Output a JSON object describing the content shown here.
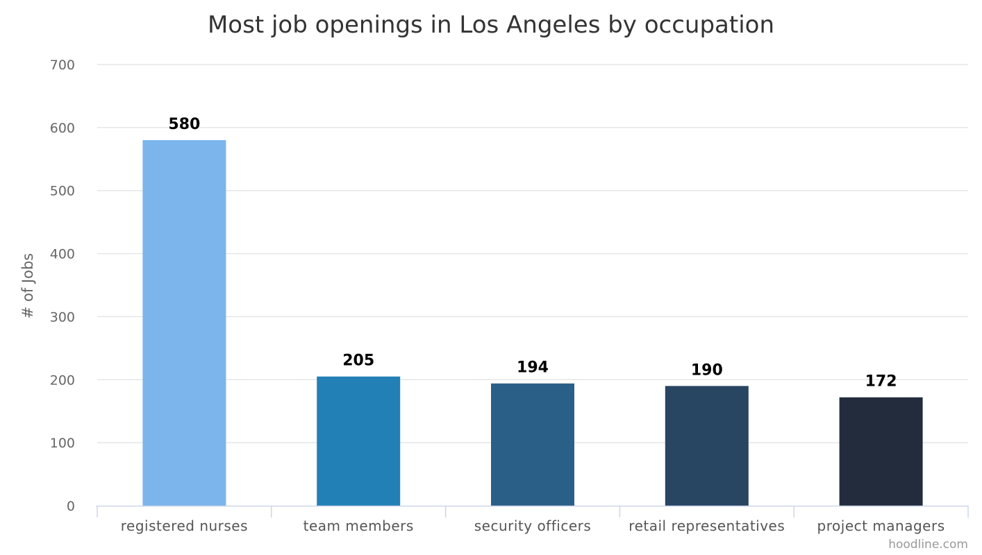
{
  "chart_data": {
    "type": "bar",
    "title": "Most job openings in Los Angeles by occupation",
    "xlabel": "",
    "ylabel": "# of Jobs",
    "categories": [
      "registered nurses",
      "team members",
      "security officers",
      "retail representatives",
      "project managers"
    ],
    "values": [
      580,
      205,
      194,
      190,
      172
    ],
    "colors": [
      "#7cb5ec",
      "#2380b6",
      "#2a5f88",
      "#284562",
      "#232c3c"
    ],
    "ylim": [
      0,
      700
    ],
    "yticks": [
      0,
      100,
      200,
      300,
      400,
      500,
      600,
      700
    ],
    "grid": true,
    "data_labels": true,
    "legend": "none"
  },
  "credit": "hoodline.com"
}
